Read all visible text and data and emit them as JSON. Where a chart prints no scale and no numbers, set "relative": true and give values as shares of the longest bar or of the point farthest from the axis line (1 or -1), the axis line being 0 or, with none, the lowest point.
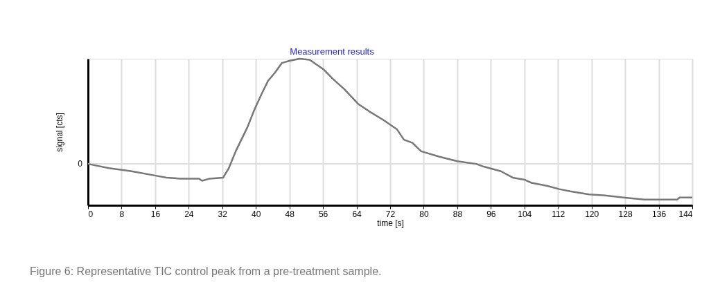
{
  "chart_data": {
    "type": "line",
    "title": "Measurement results",
    "xlabel": "time [s]",
    "ylabel": "signal [cts]",
    "relative": true,
    "annotations": [
      "Figure 6: Representative TIC control peak from a pre-treatment sample."
    ],
    "ref_lines": [
      {
        "axis": "y",
        "value": 0,
        "label": "0",
        "color": "#dddddd"
      }
    ],
    "xlim": [
      0,
      144
    ],
    "xticks": [
      0,
      8,
      16,
      24,
      32,
      40,
      48,
      56,
      64,
      72,
      80,
      88,
      96,
      104,
      112,
      120,
      128,
      136,
      144
    ],
    "grid": "x",
    "series": [
      {
        "color": "#777777",
        "x": [
          0,
          1.6,
          5,
          10.4,
          15.9,
          18.7,
          22,
          26.4,
          27.2,
          29,
          32.2,
          33.5,
          35.2,
          38,
          39.6,
          41.3,
          42.9,
          44.6,
          46.2,
          48,
          50.4,
          52.8,
          56.1,
          58.3,
          61.1,
          64.4,
          67,
          70.3,
          73.6,
          75.3,
          77.3,
          79.4,
          83.6,
          88,
          92.5,
          94.3,
          98.4,
          101.2,
          104,
          105.7,
          109.5,
          112.3,
          114.9,
          119.4,
          123.2,
          127.6,
          132.6,
          140.4,
          141,
          144
        ],
        "values": [
          0,
          -0.013,
          -0.04,
          -0.07,
          -0.11,
          -0.13,
          -0.14,
          -0.14,
          -0.16,
          -0.14,
          -0.13,
          -0.045,
          0.12,
          0.35,
          0.51,
          0.66,
          0.79,
          0.87,
          0.96,
          0.98,
          1,
          0.99,
          0.9,
          0.81,
          0.71,
          0.57,
          0.5,
          0.42,
          0.33,
          0.23,
          0.2,
          0.12,
          0.07,
          0.026,
          0,
          -0.026,
          -0.07,
          -0.13,
          -0.15,
          -0.18,
          -0.21,
          -0.24,
          -0.26,
          -0.29,
          -0.3,
          -0.32,
          -0.34,
          -0.34,
          -0.32,
          -0.32
        ]
      }
    ]
  }
}
